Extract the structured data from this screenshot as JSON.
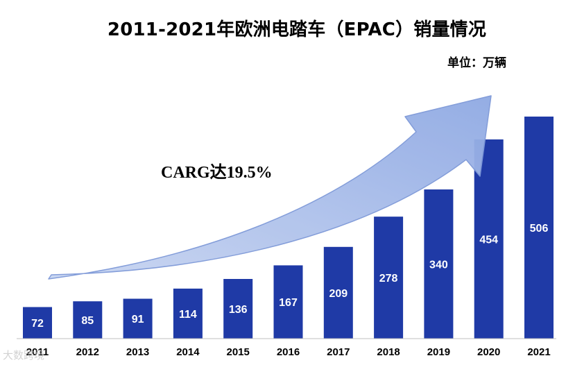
{
  "title": "2011-2021年欧洲电踏车（EPAC）销量情况",
  "unit_label": "单位：万辆",
  "cagr_label": "CARG达19.5%",
  "watermark": "大数跨境",
  "colors": {
    "bar": "#1f3aa6",
    "arrow_fill": "#9fb6e8",
    "arrow_stroke": "#6f8fd6",
    "axis_line": "#bfbfbf"
  },
  "chart_data": {
    "type": "bar",
    "title": "2011-2021年欧洲电踏车（EPAC）销量情况",
    "unit": "单位：万辆",
    "categories": [
      "2011",
      "2012",
      "2013",
      "2014",
      "2015",
      "2016",
      "2017",
      "2018",
      "2019",
      "2020",
      "2021"
    ],
    "values": [
      72,
      85,
      91,
      114,
      136,
      167,
      209,
      278,
      340,
      454,
      506
    ],
    "annotation": "CARG达19.5%",
    "grid": false,
    "legend": "none"
  }
}
